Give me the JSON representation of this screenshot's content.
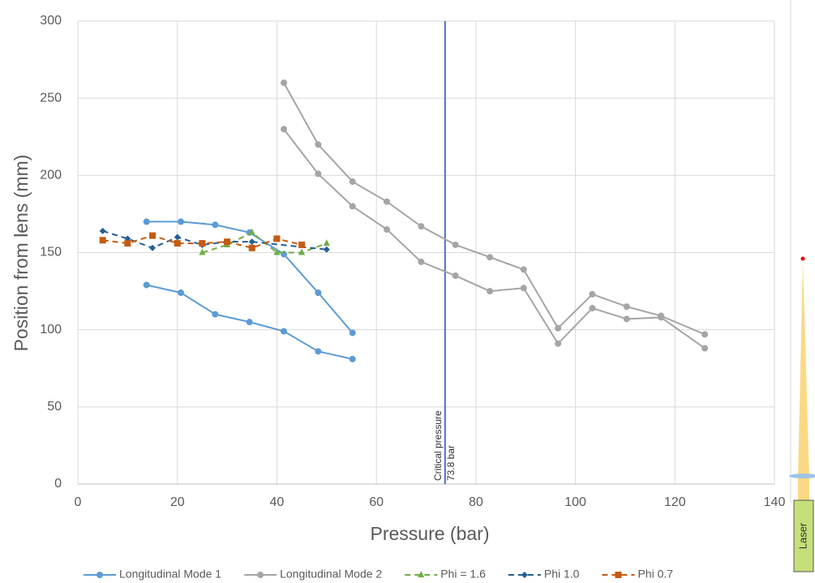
{
  "chart_data": {
    "type": "line",
    "xlabel": "Pressure (bar)",
    "ylabel": "Position from lens (mm)",
    "xlim": [
      0,
      140
    ],
    "xticks": [
      0,
      20,
      40,
      60,
      80,
      100,
      120,
      140
    ],
    "ylim": [
      0,
      300
    ],
    "yticks": [
      0,
      50,
      100,
      150,
      200,
      250,
      300
    ],
    "grid": true,
    "legend": "bottom",
    "series": [
      {
        "name": "Longitudinal Mode 1",
        "color": "#5b9bd5",
        "marker": "circle",
        "dash": false,
        "x": [
          13.8,
          20.7,
          27.6,
          34.5,
          41.4,
          48.3,
          55.2,
          null,
          13.8,
          20.7,
          27.6,
          34.5,
          41.4,
          48.3,
          55.2
        ],
        "values": [
          170,
          170,
          168,
          163,
          149,
          124,
          98,
          null,
          129,
          124,
          110,
          105,
          99,
          86,
          81
        ]
      },
      {
        "name": "Longitudinal Mode 2",
        "color": "#a5a5a5",
        "marker": "circle",
        "dash": false,
        "x": [
          41.4,
          48.3,
          55.2,
          62.1,
          69,
          75.9,
          82.8,
          89.6,
          96.5,
          103.4,
          110.3,
          117.2,
          126,
          null,
          41.4,
          48.3,
          55.2,
          62.1,
          69,
          75.9,
          82.8,
          89.6,
          96.5,
          103.4,
          110.3,
          117.2,
          126
        ],
        "values": [
          260,
          220,
          196,
          183,
          167,
          155,
          147,
          139,
          101,
          123,
          115,
          109,
          97,
          null,
          230,
          201,
          180,
          165,
          144,
          135,
          125,
          127,
          91,
          114,
          107,
          108,
          88
        ]
      },
      {
        "name": "Phi = 1.6",
        "color": "#70ad47",
        "marker": "triangle",
        "dash": true,
        "x": [
          25,
          30,
          35,
          40,
          45,
          50
        ],
        "values": [
          150,
          155,
          163,
          150,
          150,
          156
        ]
      },
      {
        "name": "Phi 1.0",
        "color": "#255e91",
        "marker": "diamond",
        "dash": true,
        "x": [
          5,
          10,
          15,
          20,
          25,
          30,
          35,
          50
        ],
        "values": [
          164,
          159,
          153,
          160,
          155,
          157,
          157,
          152
        ]
      },
      {
        "name": "Phi 0.7",
        "color": "#c55a11",
        "marker": "square",
        "dash": true,
        "x": [
          5,
          10,
          15,
          20,
          25,
          30,
          35,
          40,
          45
        ],
        "values": [
          158,
          156,
          161,
          156,
          156,
          157,
          153,
          159,
          155
        ]
      }
    ],
    "reference_line": {
      "x": 73.8,
      "color": "#4472c4",
      "label": "Critical pressure",
      "sublabel": "73.8 bar"
    },
    "laser_label": "Laser"
  }
}
